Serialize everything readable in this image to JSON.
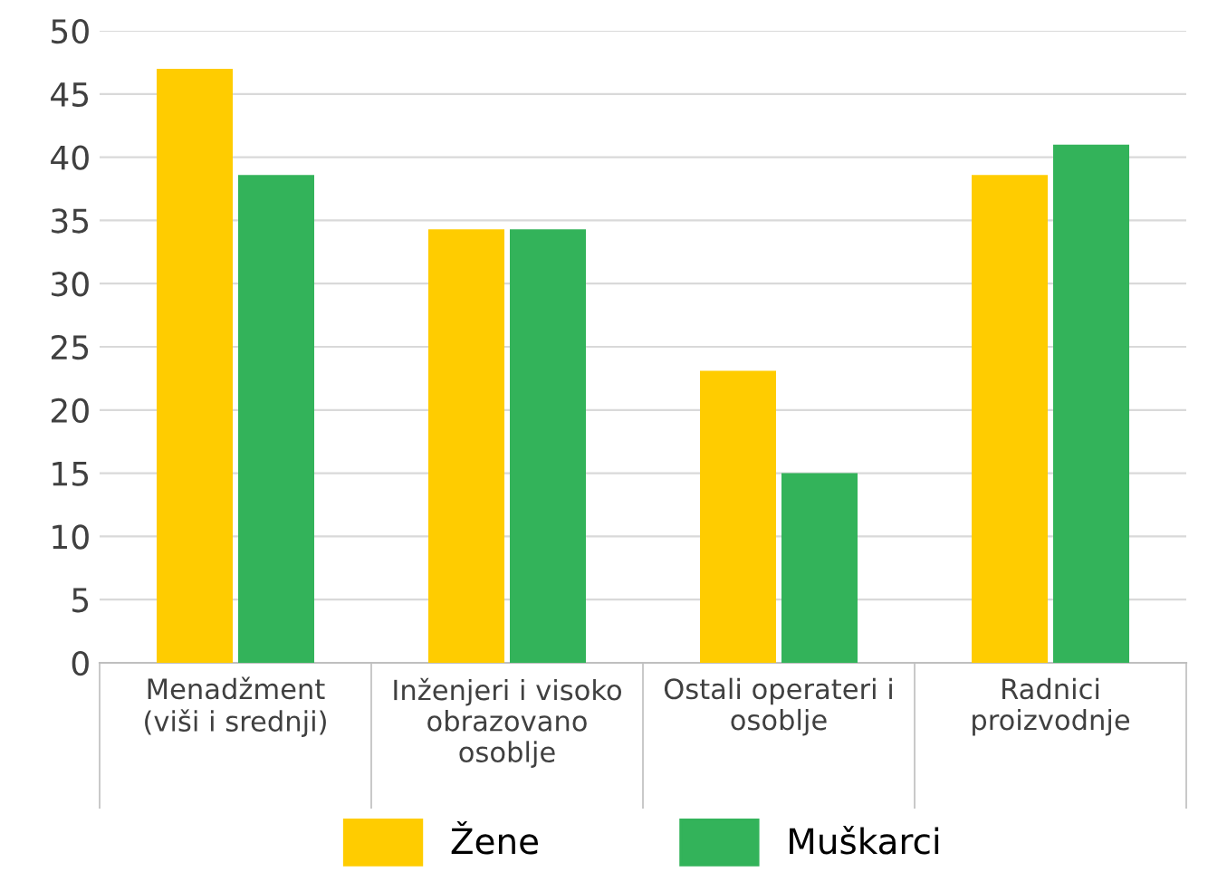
{
  "chart_data": {
    "type": "bar",
    "categories": [
      "Menadžment\n(viši i srednji)",
      "Inženjeri i visoko\nobrazovano\nosoblje",
      "Ostali operateri i\nosoblje",
      "Radnici\nproizvodnje"
    ],
    "series": [
      {
        "name": "Žene",
        "color": "#ffcc00",
        "values": [
          47,
          34.3,
          23.1,
          38.6
        ]
      },
      {
        "name": "Muškarci",
        "color": "#33b35a",
        "values": [
          38.6,
          34.3,
          15,
          41
        ]
      }
    ],
    "ylim": [
      0,
      50
    ],
    "yticks": [
      0,
      5,
      10,
      15,
      20,
      25,
      30,
      35,
      40,
      45,
      50
    ],
    "grid": "y",
    "legend": "bottom"
  }
}
